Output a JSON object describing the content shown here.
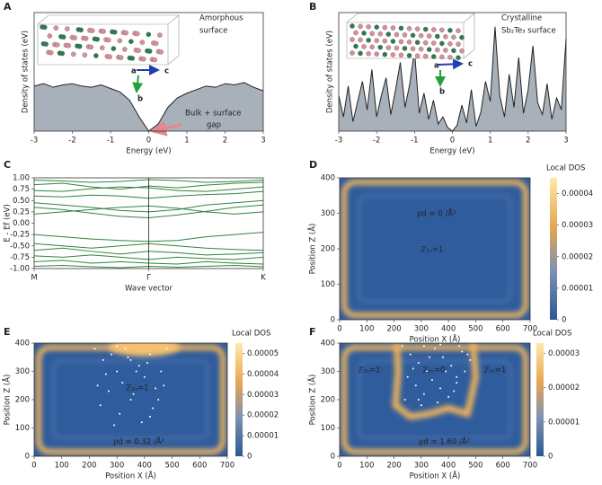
{
  "chart_data": [
    {
      "panel": "A",
      "type": "area",
      "xlabel": "Energy (eV)",
      "ylabel": "Density of states (eV)",
      "color": "#a8b1ba",
      "x": [
        -3,
        -2.75,
        -2.5,
        -2.25,
        -2,
        -1.75,
        -1.5,
        -1.25,
        -1,
        -0.75,
        -0.5,
        -0.25,
        0,
        0.25,
        0.5,
        0.75,
        1,
        1.25,
        1.5,
        1.75,
        2,
        2.25,
        2.5,
        2.75,
        3
      ],
      "values": [
        38,
        40,
        37,
        39,
        40,
        38,
        37,
        39,
        36,
        33,
        26,
        12,
        0,
        6,
        20,
        28,
        32,
        35,
        38,
        37,
        40,
        39,
        41,
        37,
        34
      ],
      "xlim": [
        -3,
        3
      ],
      "xticks": [
        -3,
        -2,
        -1,
        0,
        1,
        2,
        3
      ],
      "ylim": [
        0,
        100
      ],
      "annotations": [
        "Amorphous",
        "surface",
        "Bulk + surface",
        "gap",
        "a",
        "b",
        "c"
      ]
    },
    {
      "panel": "B",
      "type": "area",
      "xlabel": "Energy (eV)",
      "ylabel": "Density of states (eV)",
      "color": "#a8b1ba",
      "x": [
        -3,
        -2.875,
        -2.75,
        -2.625,
        -2.5,
        -2.375,
        -2.25,
        -2.125,
        -2,
        -1.875,
        -1.75,
        -1.625,
        -1.5,
        -1.375,
        -1.25,
        -1.125,
        -1,
        -0.875,
        -0.75,
        -0.625,
        -0.5,
        -0.375,
        -0.25,
        -0.125,
        0,
        0.125,
        0.25,
        0.375,
        0.5,
        0.625,
        0.75,
        0.875,
        1,
        1.125,
        1.25,
        1.375,
        1.5,
        1.625,
        1.75,
        1.875,
        2,
        2.125,
        2.25,
        2.375,
        2.5,
        2.625,
        2.75,
        2.875,
        3
      ],
      "values": [
        30,
        12,
        38,
        8,
        25,
        42,
        18,
        52,
        12,
        30,
        45,
        14,
        35,
        58,
        20,
        40,
        68,
        15,
        32,
        10,
        26,
        6,
        12,
        3,
        0,
        5,
        22,
        7,
        35,
        4,
        16,
        42,
        25,
        88,
        30,
        12,
        48,
        20,
        62,
        15,
        35,
        72,
        24,
        14,
        40,
        10,
        28,
        18,
        78
      ],
      "xlim": [
        -3,
        3
      ],
      "xticks": [
        -3,
        -2,
        -1,
        0,
        1,
        2,
        3
      ],
      "ylim": [
        0,
        100
      ],
      "annotations": [
        "Crystalline",
        "Sb₂Te₃ surface",
        "a",
        "b",
        "c"
      ]
    },
    {
      "panel": "C",
      "type": "line",
      "xlabel": "Wave vector",
      "ylabel": "E - Ef (eV)",
      "color": "#2e8540",
      "x": [
        0,
        0.25,
        0.5,
        0.75,
        1,
        1.25,
        1.5,
        1.75,
        2
      ],
      "series": [
        {
          "values": [
            0.95,
            0.93,
            0.9,
            0.92,
            0.96,
            0.94,
            0.9,
            0.92,
            0.95
          ]
        },
        {
          "values": [
            0.85,
            0.88,
            0.8,
            0.75,
            0.82,
            0.78,
            0.84,
            0.88,
            0.9
          ]
        },
        {
          "values": [
            0.72,
            0.7,
            0.76,
            0.8,
            0.78,
            0.72,
            0.7,
            0.75,
            0.8
          ]
        },
        {
          "values": [
            0.6,
            0.58,
            0.62,
            0.6,
            0.55,
            0.6,
            0.63,
            0.65,
            0.7
          ]
        },
        {
          "values": [
            0.45,
            0.4,
            0.35,
            0.28,
            0.25,
            0.3,
            0.4,
            0.45,
            0.5
          ]
        },
        {
          "values": [
            0.35,
            0.3,
            0.22,
            0.15,
            0.12,
            0.18,
            0.26,
            0.35,
            0.4
          ]
        },
        {
          "values": [
            0.2,
            0.25,
            0.3,
            0.35,
            0.38,
            0.33,
            0.25,
            0.2,
            0.25
          ]
        },
        {
          "values": [
            -0.25,
            -0.3,
            -0.35,
            -0.38,
            -0.4,
            -0.38,
            -0.3,
            -0.25,
            -0.2
          ]
        },
        {
          "values": [
            -0.45,
            -0.5,
            -0.55,
            -0.5,
            -0.45,
            -0.5,
            -0.55,
            -0.58,
            -0.6
          ]
        },
        {
          "values": [
            -0.6,
            -0.55,
            -0.62,
            -0.68,
            -0.62,
            -0.65,
            -0.7,
            -0.68,
            -0.65
          ]
        },
        {
          "values": [
            -0.72,
            -0.75,
            -0.7,
            -0.75,
            -0.8,
            -0.75,
            -0.78,
            -0.8,
            -0.75
          ]
        },
        {
          "values": [
            -0.85,
            -0.82,
            -0.88,
            -0.85,
            -0.88,
            -0.9,
            -0.85,
            -0.88,
            -0.9
          ]
        },
        {
          "values": [
            -0.95,
            -0.93,
            -0.96,
            -0.98,
            -0.95,
            -0.97,
            -0.95,
            -0.93,
            -0.96
          ]
        }
      ],
      "xlim": [
        0,
        2
      ],
      "xticks": [
        {
          "value": 0,
          "label": "M"
        },
        {
          "value": 1,
          "label": "Γ"
        },
        {
          "value": 2,
          "label": "K"
        }
      ],
      "ylim": [
        -1,
        1
      ],
      "yticks": [
        {
          "value": -1,
          "label": "-1.00"
        },
        {
          "value": -0.75,
          "label": "-0.75"
        },
        {
          "value": -0.5,
          "label": "-0.50"
        },
        {
          "value": -0.25,
          "label": "-0.25"
        },
        {
          "value": 0,
          "label": "0.00"
        },
        {
          "value": 0.25,
          "label": "0.25"
        },
        {
          "value": 0.5,
          "label": "0.50"
        },
        {
          "value": 0.75,
          "label": "0.75"
        },
        {
          "value": 1,
          "label": "1.00"
        }
      ]
    },
    {
      "panel": "D",
      "type": "heatmap",
      "xlabel": "Position X (Å)",
      "ylabel": "Position Z (Å)",
      "xlim": [
        0,
        700
      ],
      "xticks": [
        0,
        100,
        200,
        300,
        400,
        500,
        600,
        700
      ],
      "ylim": [
        0,
        400
      ],
      "yticks": [
        0,
        100,
        200,
        300,
        400
      ],
      "colorbar": {
        "label": "Local DOS",
        "lim": [
          0,
          4.5e-05
        ],
        "ticks": [
          0,
          1e-05,
          2e-05,
          3e-05,
          4e-05
        ]
      },
      "annotations": [
        "ρd = 0 /Å²",
        "ℤ₂ₛ=1"
      ]
    },
    {
      "panel": "E",
      "type": "heatmap",
      "xlabel": "Position X (Å)",
      "ylabel": "Position Z (Å)",
      "xlim": [
        0,
        700
      ],
      "xticks": [
        0,
        100,
        200,
        300,
        400,
        500,
        600,
        700
      ],
      "ylim": [
        0,
        400
      ],
      "yticks": [
        0,
        100,
        200,
        300,
        400
      ],
      "colorbar": {
        "label": "Local DOS",
        "lim": [
          0,
          5.5e-05
        ],
        "ticks": [
          0,
          1e-05,
          2e-05,
          3e-05,
          4e-05,
          5e-05
        ]
      },
      "points": {
        "x": [
          220,
          250,
          280,
          300,
          320,
          340,
          360,
          380,
          400,
          420,
          440,
          460,
          480,
          240,
          270,
          310,
          350,
          390,
          430,
          470,
          260,
          330,
          410,
          290,
          370,
          450,
          230,
          350,
          300,
          420
        ],
        "y": [
          380,
          340,
          360,
          300,
          260,
          350,
          220,
          320,
          280,
          360,
          240,
          300,
          380,
          180,
          230,
          150,
          200,
          120,
          170,
          250,
          290,
          380,
          330,
          110,
          300,
          200,
          250,
          340,
          390,
          140
        ]
      },
      "annotations": [
        "ℤ₂ₛ=1",
        "ρd = 0.32 /Å²"
      ]
    },
    {
      "panel": "F",
      "type": "heatmap",
      "xlabel": "Position X (Å)",
      "ylabel": "Position Z (Å)",
      "xlim": [
        0,
        700
      ],
      "xticks": [
        0,
        100,
        200,
        300,
        400,
        500,
        600,
        700
      ],
      "ylim": [
        0,
        400
      ],
      "yticks": [
        0,
        100,
        200,
        300,
        400
      ],
      "colorbar": {
        "label": "Local DOS",
        "lim": [
          0,
          3.3e-05
        ],
        "ticks": [
          0,
          1e-05,
          2e-05,
          3e-05
        ]
      },
      "points": {
        "x": [
          230,
          260,
          290,
          320,
          350,
          380,
          410,
          440,
          470,
          250,
          280,
          310,
          340,
          370,
          400,
          430,
          460,
          240,
          300,
          360,
          420,
          480,
          270,
          330,
          390,
          450,
          310,
          370,
          430,
          290
        ],
        "y": [
          390,
          360,
          330,
          300,
          380,
          350,
          320,
          390,
          360,
          280,
          250,
          220,
          270,
          240,
          210,
          260,
          300,
          200,
          180,
          190,
          230,
          340,
          310,
          350,
          300,
          370,
          390,
          395,
          280,
          200
        ]
      },
      "annotations": [
        "ℤ₂ₛ=1",
        "ℤ₂ₛ=0",
        "ℤ₂ₛ=1",
        "ρd = 1.60 /Å²"
      ]
    }
  ]
}
